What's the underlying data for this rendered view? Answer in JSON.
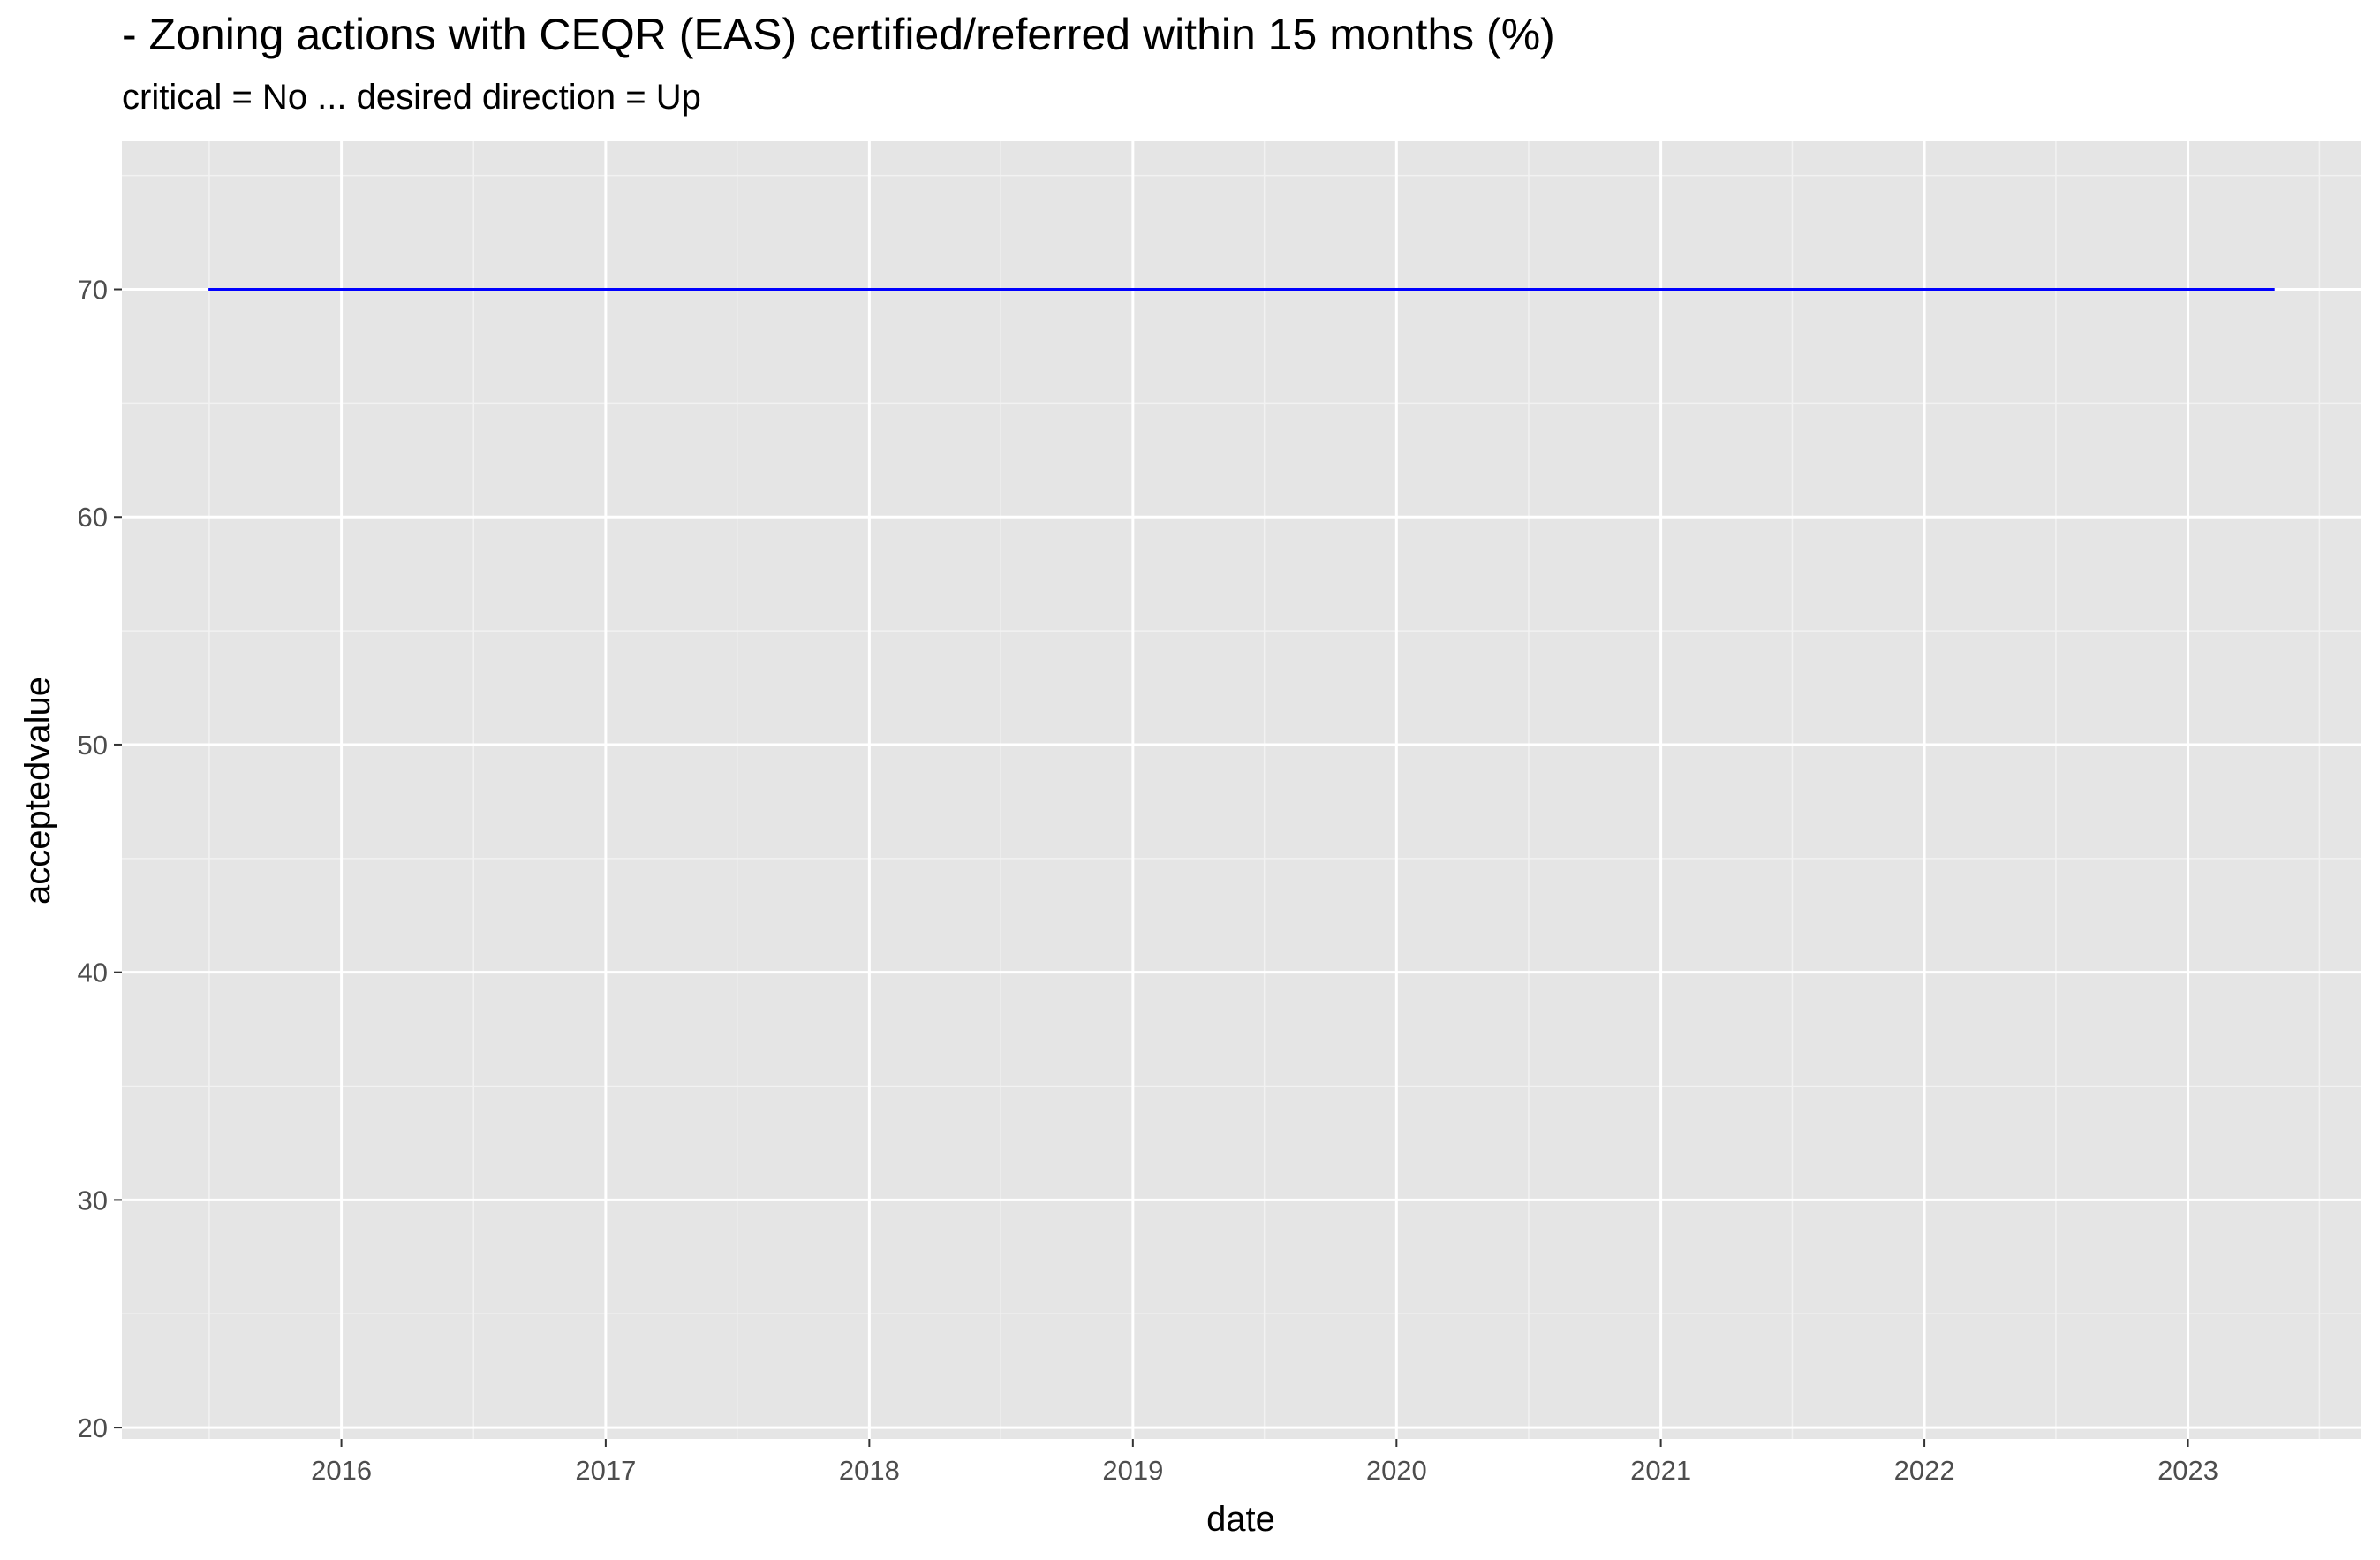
{
  "chart_data": {
    "type": "line",
    "title": "- Zoning actions with CEQR (EAS) certified/referred within 15 months (%)",
    "subtitle": "critical = No ... desired direction = Up",
    "xlabel": "date",
    "ylabel": "acceptedvalue",
    "x_ticks": [
      "2016",
      "2017",
      "2018",
      "2019",
      "2020",
      "2021",
      "2022",
      "2023"
    ],
    "y_ticks": [
      20,
      30,
      40,
      50,
      60,
      70
    ],
    "xlim": [
      "2015-03-03",
      "2023-08-28"
    ],
    "ylim": [
      19.5,
      76.5
    ],
    "grid": true,
    "series": [
      {
        "color": "#0000ff",
        "x": [
          "2015-07-01",
          "2023-05-01"
        ],
        "values": [
          70,
          70
        ]
      }
    ]
  }
}
